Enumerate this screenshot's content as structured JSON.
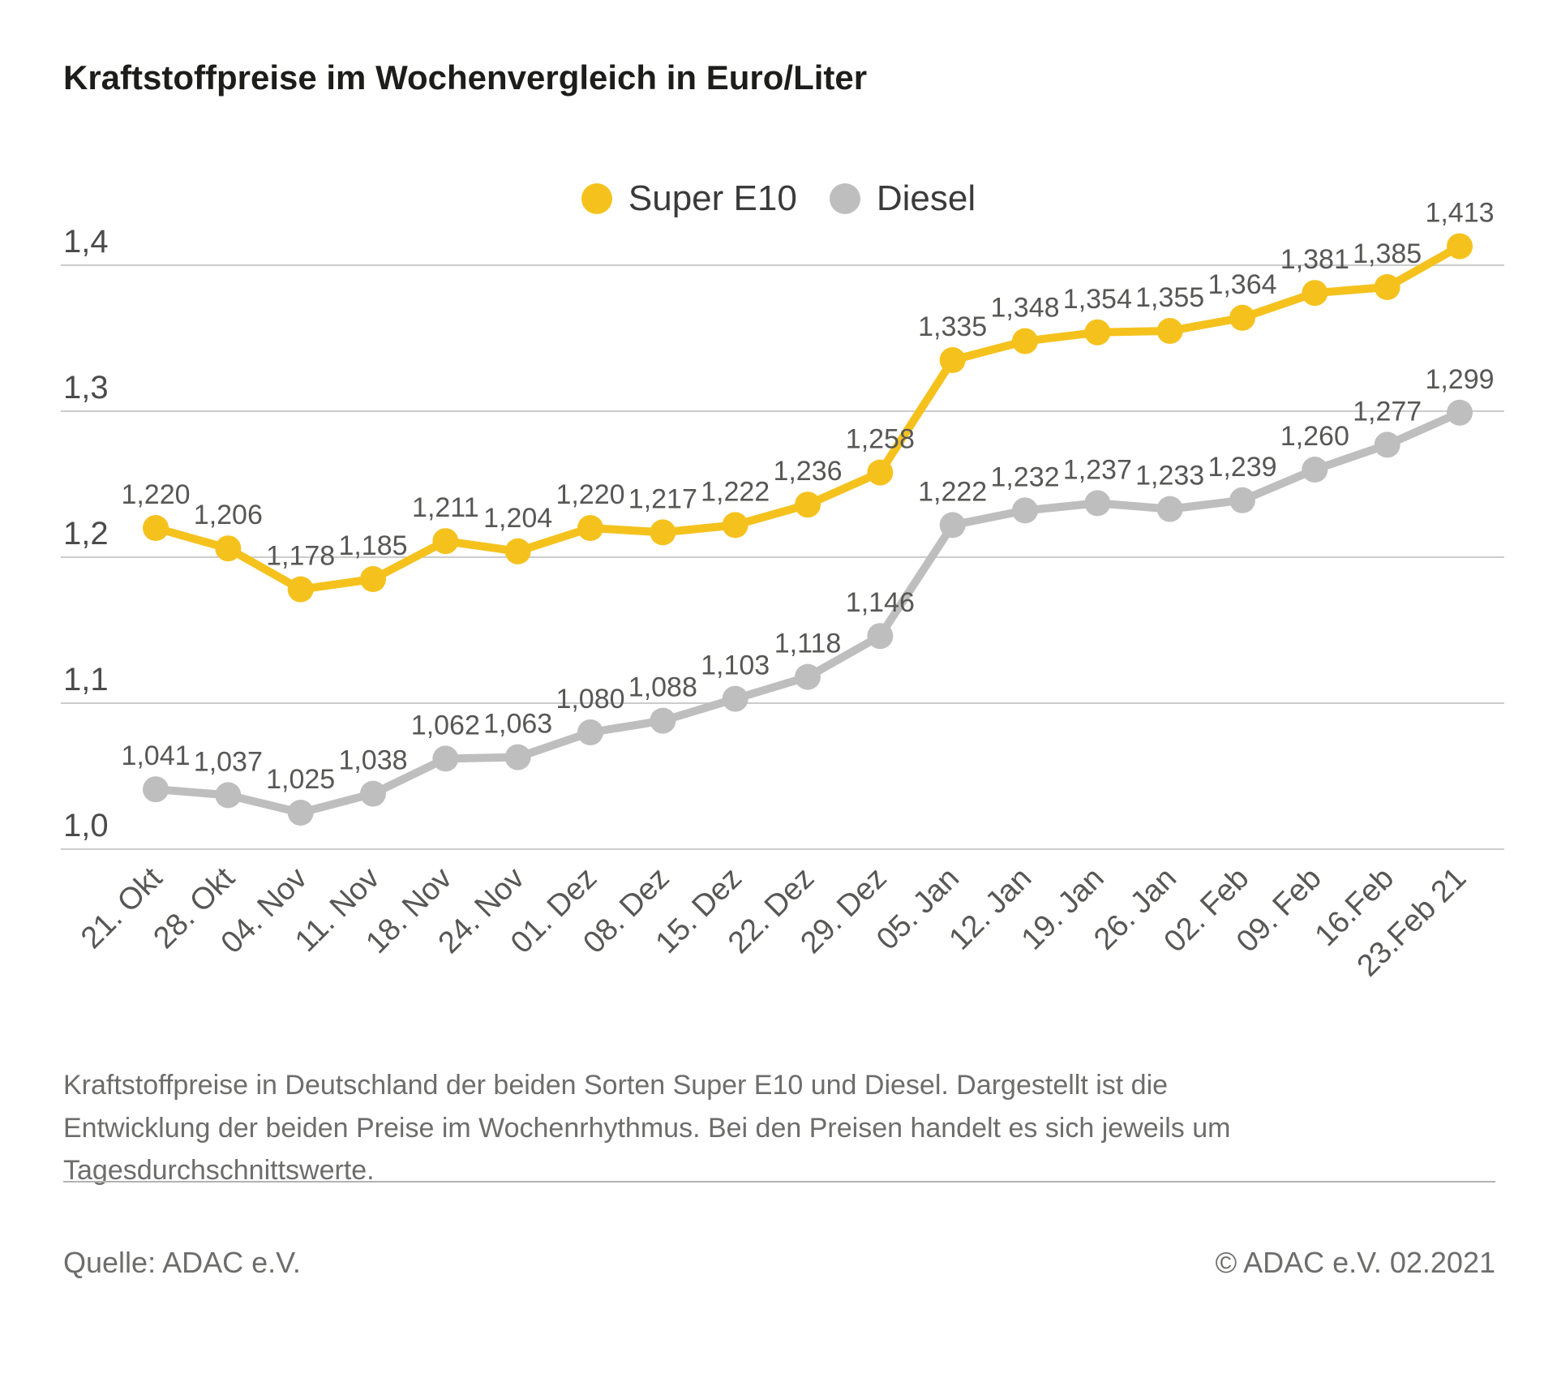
{
  "title": "Kraftstoffpreise im Wochenvergleich in Euro/Liter",
  "legend": [
    {
      "label": "Super E10",
      "color": "#f5c21d"
    },
    {
      "label": "Diesel",
      "color": "#bebebe"
    }
  ],
  "chart_data": {
    "type": "line",
    "title": "Kraftstoffpreise im Wochenvergleich in Euro/Liter",
    "categories": [
      "21. Okt",
      "28. Okt",
      "04. Nov",
      "11. Nov",
      "18. Nov",
      "24. Nov",
      "01. Dez",
      "08. Dez",
      "15. Dez",
      "22. Dez",
      "29. Dez",
      "05. Jan",
      "12. Jan",
      "19. Jan",
      "26. Jan",
      "02. Feb",
      "09. Feb",
      "16.Feb",
      "23.Feb 21"
    ],
    "series": [
      {
        "name": "Super E10",
        "color": "#f5c21d",
        "values": [
          1.22,
          1.206,
          1.178,
          1.185,
          1.211,
          1.204,
          1.22,
          1.217,
          1.222,
          1.236,
          1.258,
          1.335,
          1.348,
          1.354,
          1.355,
          1.364,
          1.381,
          1.385,
          1.413
        ]
      },
      {
        "name": "Diesel",
        "color": "#bebebe",
        "values": [
          1.041,
          1.037,
          1.025,
          1.038,
          1.062,
          1.063,
          1.08,
          1.088,
          1.103,
          1.118,
          1.146,
          1.222,
          1.232,
          1.237,
          1.233,
          1.239,
          1.26,
          1.277,
          1.299
        ]
      }
    ],
    "xlabel": "",
    "ylabel": "Euro/Liter",
    "ylim": [
      1.0,
      1.45
    ],
    "yticks": [
      1.0,
      1.1,
      1.2,
      1.3,
      1.4
    ],
    "grid": true,
    "legend_position": "top",
    "value_labels": true,
    "decimal_separator": ",",
    "grid_color": "#cccccc",
    "label_color": "#575756",
    "tick_color": "#4b4b4d"
  },
  "caption": "Kraftstoffpreise in Deutschland der beiden Sorten Super E10 und Diesel. Dargestellt ist die Entwicklung der beiden Preise im Wochenrhythmus. Bei den Preisen handelt es sich jeweils um Tagesdurchschnittswerte.",
  "footer": {
    "source": "Quelle: ADAC e.V.",
    "copyright": "© ADAC e.V. 02.2021"
  }
}
